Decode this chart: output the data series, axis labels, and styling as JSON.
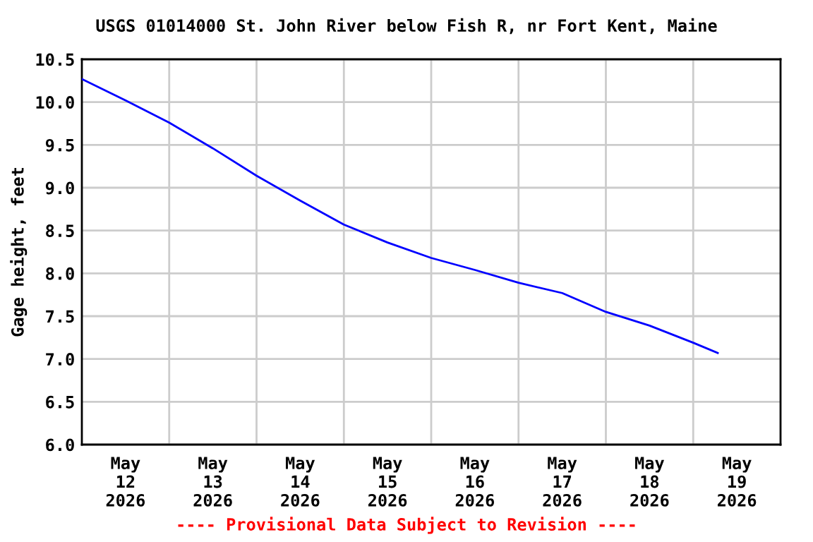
{
  "chart_data": {
    "type": "line",
    "title": "USGS 01014000 St. John River below Fish R, nr Fort Kent, Maine",
    "ylabel": "Gage height, feet",
    "annotations": [
      "---- Provisional Data Subject to Revision ----"
    ],
    "series": [
      {
        "color": "#0000ff",
        "x": [
          "2026-05-12T00:00",
          "2026-05-12T12:00",
          "2026-05-13T00:00",
          "2026-05-13T12:00",
          "2026-05-14T00:00",
          "2026-05-14T12:00",
          "2026-05-15T00:00",
          "2026-05-15T12:00",
          "2026-05-16T00:00",
          "2026-05-16T12:00",
          "2026-05-17T00:00",
          "2026-05-17T12:00",
          "2026-05-18T00:00",
          "2026-05-18T12:00",
          "2026-05-19T00:00",
          "2026-05-19T06:45"
        ],
        "values": [
          10.27,
          10.02,
          9.76,
          9.46,
          9.14,
          8.85,
          8.57,
          8.36,
          8.18,
          8.04,
          7.89,
          7.77,
          7.55,
          7.39,
          7.19,
          7.07
        ]
      }
    ],
    "xlim": [
      "2026-05-12T00:00",
      "2026-05-20T00:00"
    ],
    "xticks": [
      {
        "value": "2026-05-12T12:00",
        "label": "May\n12\n2026"
      },
      {
        "value": "2026-05-13T00:00",
        "label": null
      },
      {
        "value": "2026-05-13T12:00",
        "label": "May\n13\n2026"
      },
      {
        "value": "2026-05-14T00:00",
        "label": null
      },
      {
        "value": "2026-05-14T12:00",
        "label": "May\n14\n2026"
      },
      {
        "value": "2026-05-15T00:00",
        "label": null
      },
      {
        "value": "2026-05-15T12:00",
        "label": "May\n15\n2026"
      },
      {
        "value": "2026-05-16T00:00",
        "label": null
      },
      {
        "value": "2026-05-16T12:00",
        "label": "May\n16\n2026"
      },
      {
        "value": "2026-05-17T00:00",
        "label": null
      },
      {
        "value": "2026-05-17T12:00",
        "label": "May\n17\n2026"
      },
      {
        "value": "2026-05-18T00:00",
        "label": null
      },
      {
        "value": "2026-05-18T12:00",
        "label": "May\n18\n2026"
      },
      {
        "value": "2026-05-19T00:00",
        "label": null
      },
      {
        "value": "2026-05-19T12:00",
        "label": "May\n19\n2026"
      }
    ],
    "ylim": [
      6.0,
      10.5
    ],
    "yticks": [
      {
        "value": 6.0,
        "label": "6.0"
      },
      {
        "value": 6.5,
        "label": "6.5"
      },
      {
        "value": 7.0,
        "label": "7.0"
      },
      {
        "value": 7.5,
        "label": "7.5"
      },
      {
        "value": 8.0,
        "label": "8.0"
      },
      {
        "value": 8.5,
        "label": "8.5"
      },
      {
        "value": 9.0,
        "label": "9.0"
      },
      {
        "value": 9.5,
        "label": "9.5"
      },
      {
        "value": 10.0,
        "label": "10.0"
      },
      {
        "value": 10.5,
        "label": "10.5"
      }
    ],
    "grid": true,
    "line_style": "solid",
    "marker": "none",
    "legend": false
  }
}
